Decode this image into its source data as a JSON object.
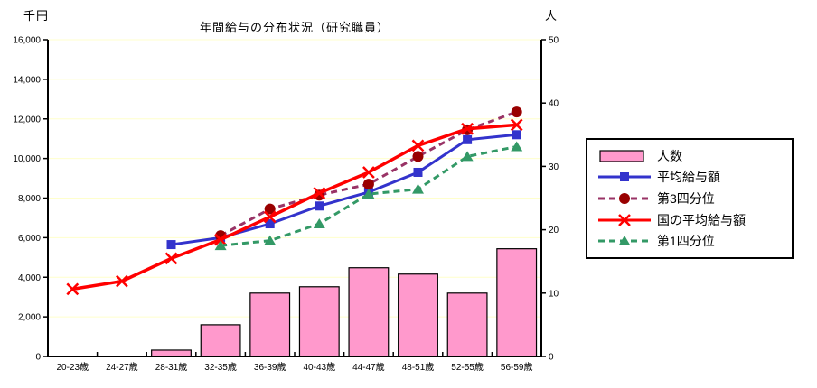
{
  "figure": {
    "title": "年間給与の分布状況（研究職員）",
    "background": "#FFFFFF",
    "gridline_color": "#FFFFCC",
    "axis_color": "#000000"
  },
  "chart_data": {
    "type": "bar",
    "subtype": "combo-bar-lines",
    "title": "年間給与の分布状況（研究職員）",
    "categories": [
      "20-23歳",
      "24-27歳",
      "28-31歳",
      "32-35歳",
      "36-39歳",
      "40-43歳",
      "44-47歳",
      "48-51歳",
      "52-55歳",
      "56-59歳"
    ],
    "left_axis": {
      "label": "千円",
      "min": 0,
      "max": 16000,
      "step": 2000
    },
    "right_axis": {
      "label": "人",
      "min": 0,
      "max": 50,
      "step": 10
    },
    "grid": "horizontal",
    "legend_position": "right",
    "bar_series": {
      "name": "人数",
      "axis": "right",
      "color": "#FF99CC",
      "border_color": "#000000",
      "values": [
        0,
        0,
        1,
        5,
        10,
        11,
        14,
        13,
        10,
        17
      ]
    },
    "line_series": [
      {
        "name": "平均給与額",
        "axis": "left",
        "color": "#3333CC",
        "style": "solid",
        "marker": "square",
        "values": [
          null,
          null,
          5650,
          6000,
          6700,
          7600,
          8300,
          9300,
          10950,
          11200
        ]
      },
      {
        "name": "第3四分位",
        "axis": "left",
        "color": "#993366",
        "marker_color": "#990000",
        "style": "dashed",
        "marker": "circle",
        "values": [
          null,
          null,
          null,
          6100,
          7450,
          8150,
          8700,
          10100,
          11450,
          12350
        ]
      },
      {
        "name": "国の平均給与額",
        "axis": "left",
        "color": "#FF0000",
        "style": "solid",
        "marker": "x",
        "values": [
          3400,
          3800,
          4950,
          5900,
          7050,
          8250,
          9300,
          10650,
          11500,
          11700
        ]
      },
      {
        "name": "第1四分位",
        "axis": "left",
        "color": "#339966",
        "style": "dashed",
        "marker": "triangle",
        "values": [
          null,
          null,
          null,
          5600,
          5850,
          6700,
          8200,
          8450,
          10100,
          10600
        ]
      }
    ]
  }
}
